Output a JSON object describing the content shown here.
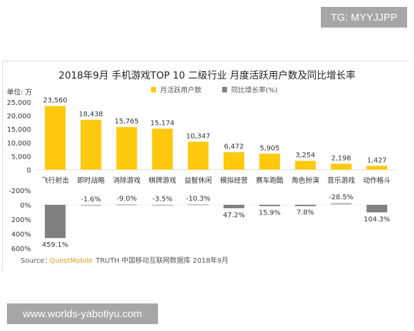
{
  "watermarks": {
    "top": "TG: MYYJJPP",
    "bottom": "www.worlds-yabotiyu.com"
  },
  "chart_data": {
    "type": "bar",
    "title": "2018年9月 手机游戏TOP 10 二级行业 月度活跃用户数及同比增长率",
    "unit_label": "单位: 万",
    "legend": [
      "月活跃用户数",
      "同比增长率(%)"
    ],
    "legend_position": "top",
    "categories": [
      "飞行射击",
      "即时战略",
      "消除游戏",
      "棋牌游戏",
      "益智休闲",
      "模拟经营",
      "赛车跑酷",
      "角色扮演",
      "音乐游戏",
      "动作格斗"
    ],
    "series": [
      {
        "name": "月活跃用户数",
        "values": [
          23560,
          18438,
          15765,
          15174,
          10347,
          6472,
          5905,
          3254,
          2198,
          1427
        ],
        "labels": [
          "23,560",
          "18,438",
          "15,765",
          "15,174",
          "10,347",
          "6,472",
          "5,905",
          "3,254",
          "2,198",
          "1,427"
        ],
        "color": "#ffc90e",
        "ylim": [
          0,
          25000
        ],
        "ticks": [
          "25,000",
          "20,000",
          "15,000",
          "10,000",
          "5,000",
          "0"
        ],
        "tick_values": [
          25000,
          20000,
          15000,
          10000,
          5000,
          0
        ]
      },
      {
        "name": "同比增长率(%)",
        "values": [
          459.1,
          -1.6,
          -9.0,
          -3.5,
          -10.3,
          47.2,
          15.9,
          7.8,
          -28.5,
          104.3
        ],
        "labels": [
          "459.1%",
          "-1.6%",
          "-9.0%",
          "-3.5%",
          "-10.3%",
          "47.2%",
          "15.9%",
          "7.8%",
          "-28.5%",
          "104.3%"
        ],
        "color": "#808080",
        "negative_color": "#c8c8c8",
        "ylim": [
          -200,
          600
        ],
        "inverted": true,
        "ticks": [
          "-200%",
          "0%",
          "200%",
          "400%",
          "600%"
        ],
        "tick_values": [
          -200,
          0,
          200,
          400,
          600
        ]
      }
    ],
    "source_prefix": "Source：",
    "source_brand": "QuestMobile",
    "source_rest": "TRUTH 中国移动互联网数据库 2018年9月",
    "brand_color": "#d4a017"
  }
}
